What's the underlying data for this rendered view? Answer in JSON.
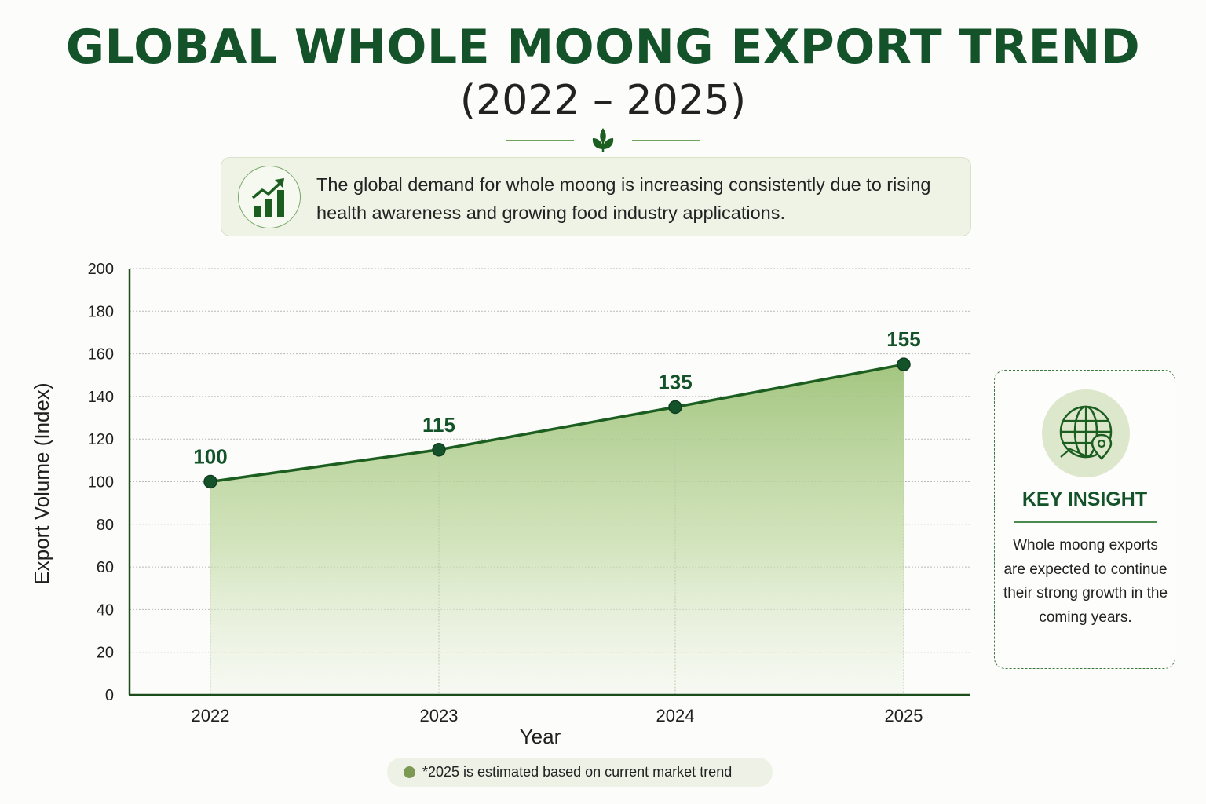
{
  "header": {
    "title": "GLOBAL WHOLE MOONG EXPORT TREND",
    "subtitle": "(2022 – 2025)"
  },
  "description": {
    "text": "The global demand for whole moong is increasing consistently due to rising health awareness and growing food industry applications.",
    "icon": "bar-chart-growth-icon"
  },
  "insight": {
    "icon": "globe-location-icon",
    "title": "KEY INSIGHT",
    "text": "Whole moong exports are expected to continue their strong growth in the coming years."
  },
  "note": {
    "text": "*2025 is estimated based on current market trend"
  },
  "colors": {
    "primary": "#14532a",
    "line": "#1b5e20",
    "area": "#9fc37a",
    "accent": "#7d9a55"
  },
  "chart_data": {
    "type": "area",
    "x": [
      "2022",
      "2023",
      "2024",
      "2025"
    ],
    "series": [
      {
        "values": [
          100,
          115,
          135,
          155
        ]
      }
    ],
    "data_labels": [
      "100",
      "115",
      "135",
      "155"
    ],
    "xlabel": "Year",
    "ylabel": "Export Volume (Index)",
    "ylim": [
      0,
      200
    ],
    "yticks": [
      0,
      20,
      40,
      60,
      80,
      100,
      120,
      140,
      160,
      180,
      200
    ],
    "grid": true
  }
}
